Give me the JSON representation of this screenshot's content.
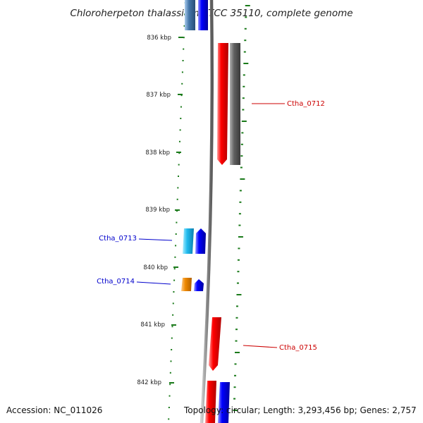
{
  "title": "Chloroherpeton thalassium ATCC 35110, complete genome",
  "footer": {
    "accession": "Accession: NC_011026",
    "topology": "Topology: circular; Length: 3,293,456 bp; Genes: 2,757"
  },
  "ticks": [
    "836 kbp",
    "837 kbp",
    "838 kbp",
    "839 kbp",
    "840 kbp",
    "841 kbp",
    "842 kbp"
  ],
  "gene_labels": [
    {
      "text": "Ctha_0712",
      "color": "#cc0000"
    },
    {
      "text": "Ctha_0713",
      "color": "#0000cc"
    },
    {
      "text": "Ctha_0714",
      "color": "#0000cc"
    },
    {
      "text": "Ctha_0715",
      "color": "#cc0000"
    }
  ],
  "colors": {
    "tick": "#1a7a1a",
    "backbone": "#888888",
    "forward": "#ff0000",
    "reverse": "#0000ff",
    "cog_gray": "#606060",
    "cog_cyan": "#22bbee",
    "cog_orange": "#ee8800",
    "cog_steel": "#4477aa"
  }
}
